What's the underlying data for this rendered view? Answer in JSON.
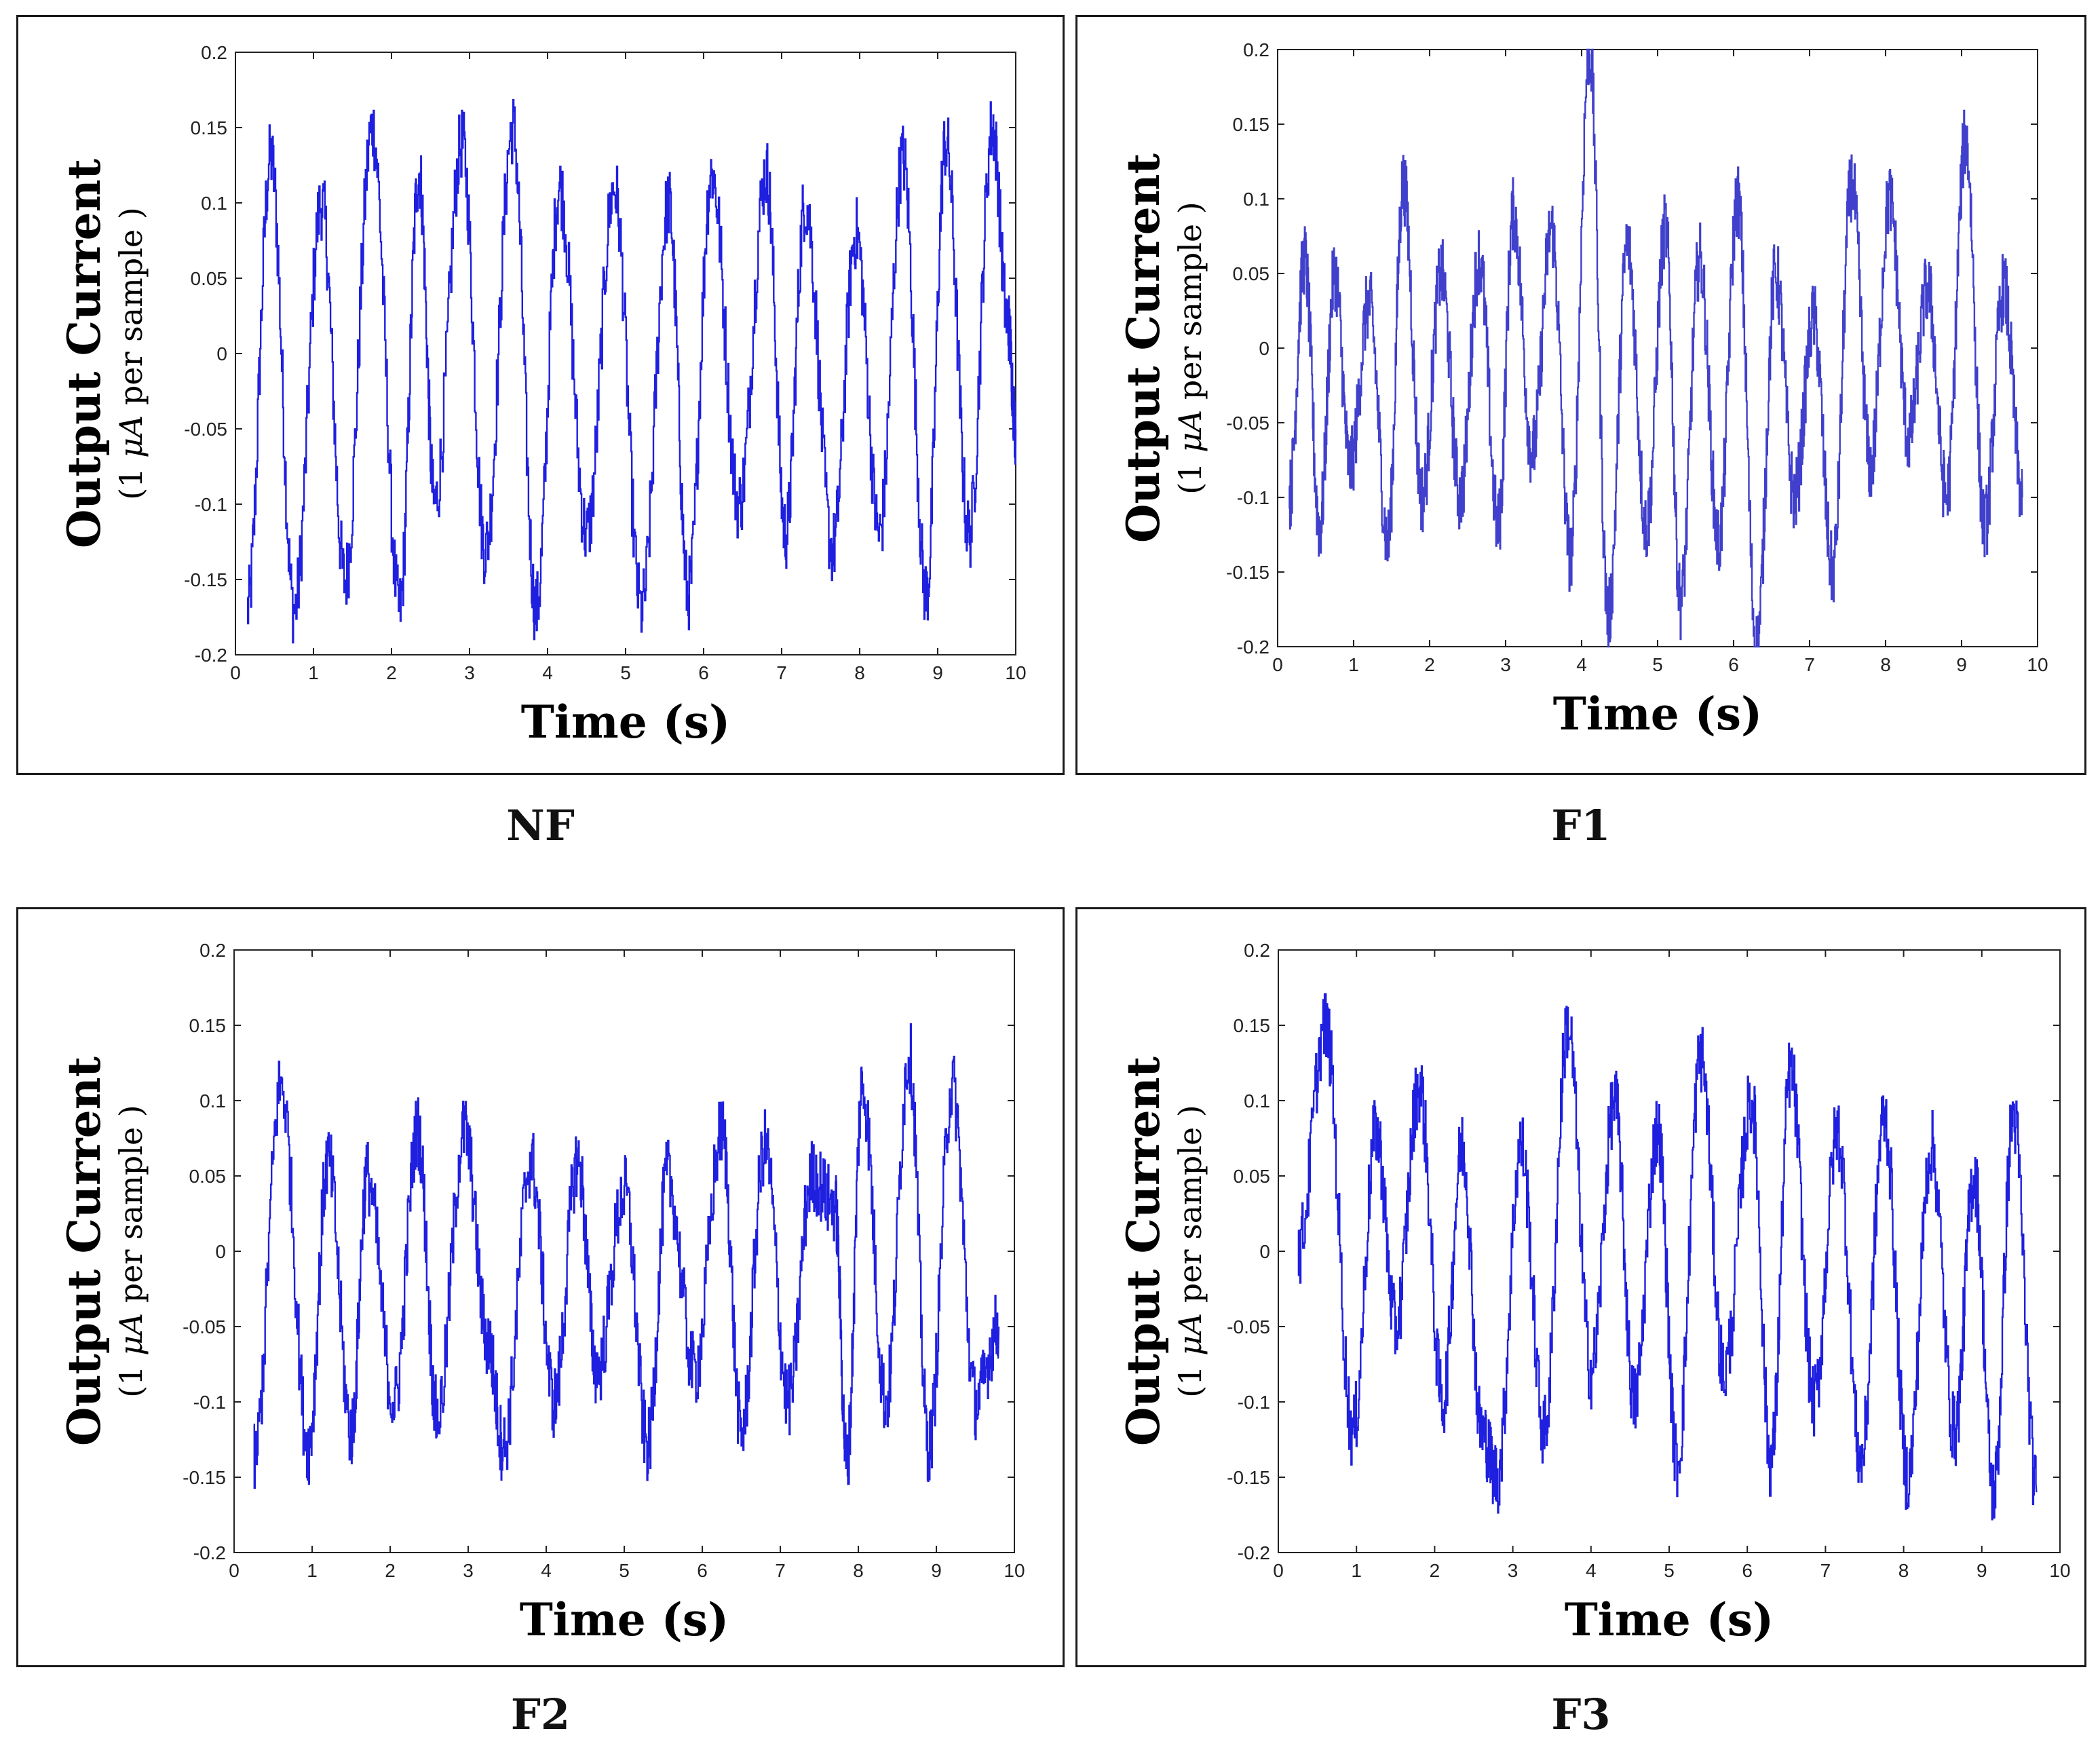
{
  "chart_data": [
    {
      "type": "line",
      "caption": "NF",
      "xlabel": "Time (s)",
      "ylabel": "Output Current",
      "ylabel_unit": [
        "(1 ",
        "μA",
        " per sample )"
      ],
      "xlim": [
        0,
        10
      ],
      "ylim": [
        -0.2,
        0.2
      ],
      "xticks": [
        0,
        1,
        2,
        3,
        4,
        5,
        6,
        7,
        8,
        9,
        10
      ],
      "xtick_labels": [
        "0",
        "1",
        "2",
        "3",
        "4",
        "5",
        "6",
        "7",
        "8",
        "9",
        "10"
      ],
      "yticks": [
        -0.2,
        -0.15,
        -0.1,
        -0.05,
        0,
        0.05,
        0.1,
        0.15,
        0.2
      ],
      "ytick_labels": [
        "-0.2",
        "-0.15",
        "-0.1",
        "-0.05",
        "0",
        "0.05",
        "0.1",
        "0.15",
        "0.2"
      ],
      "series": [
        {
          "name": "NF",
          "color": "#1f1fe0",
          "x": [
            0.15,
            0.45,
            0.75,
            1.1,
            1.4,
            1.75,
            2.1,
            2.35,
            2.55,
            2.9,
            3.2,
            3.55,
            3.85,
            4.15,
            4.5,
            4.85,
            5.2,
            5.55,
            5.8,
            6.1,
            6.45,
            6.8,
            7.05,
            7.3,
            7.65,
            7.95,
            8.25,
            8.55,
            8.85,
            9.1,
            9.4,
            9.7,
            9.9,
            10.0
          ],
          "values": [
            -0.17,
            0.13,
            -0.17,
            0.1,
            -0.15,
            0.15,
            -0.17,
            0.12,
            -0.1,
            0.14,
            -0.13,
            0.15,
            -0.17,
            0.11,
            -0.12,
            0.11,
            -0.17,
            0.1,
            -0.16,
            0.12,
            -0.1,
            0.12,
            -0.12,
            0.1,
            -0.13,
            0.08,
            -0.12,
            0.13,
            -0.16,
            0.14,
            -0.12,
            0.15,
            0.02,
            -0.05
          ]
        }
      ]
    },
    {
      "type": "line",
      "caption": "F1",
      "xlabel": "Time (s)",
      "ylabel": "Output Current",
      "ylabel_unit": [
        "(1 ",
        "μA",
        " per sample )"
      ],
      "xlim": [
        0,
        10
      ],
      "ylim": [
        -0.2,
        0.2
      ],
      "xticks": [
        0,
        1,
        2,
        3,
        4,
        5,
        6,
        7,
        8,
        9,
        10
      ],
      "xtick_labels": [
        "0",
        "1",
        "2",
        "3",
        "4",
        "5",
        "6",
        "7",
        "8",
        "9",
        "10"
      ],
      "yticks": [
        -0.2,
        -0.15,
        -0.1,
        -0.05,
        0,
        0.05,
        0.1,
        0.15,
        0.2
      ],
      "ytick_labels": [
        "-0.2",
        "-0.15",
        "-0.1",
        "-0.05",
        "0",
        "0.05",
        "0.1",
        "0.15",
        "0.2"
      ],
      "series": [
        {
          "name": "F1",
          "color": "#4040cc",
          "x": [
            0.15,
            0.35,
            0.55,
            0.75,
            0.95,
            1.2,
            1.45,
            1.65,
            1.9,
            2.15,
            2.4,
            2.65,
            2.9,
            3.1,
            3.35,
            3.6,
            3.85,
            4.1,
            4.35,
            4.6,
            4.85,
            5.1,
            5.3,
            5.55,
            5.8,
            6.05,
            6.3,
            6.55,
            6.8,
            7.05,
            7.3,
            7.55,
            7.8,
            8.05,
            8.3,
            8.55,
            8.8,
            9.05,
            9.3,
            9.55,
            9.8
          ],
          "values": [
            -0.1,
            0.06,
            -0.12,
            0.05,
            -0.08,
            0.03,
            -0.13,
            0.11,
            -0.1,
            0.05,
            -0.1,
            0.06,
            -0.12,
            0.09,
            -0.07,
            0.08,
            -0.14,
            0.2,
            -0.18,
            0.07,
            -0.12,
            0.08,
            -0.17,
            0.06,
            -0.13,
            0.1,
            -0.2,
            0.05,
            -0.1,
            0.02,
            -0.15,
            0.11,
            -0.08,
            0.1,
            -0.06,
            0.04,
            -0.1,
            0.14,
            -0.12,
            0.04,
            -0.1
          ]
        }
      ]
    },
    {
      "type": "line",
      "caption": "F2",
      "xlabel": "Time (s)",
      "ylabel": "Output Current",
      "ylabel_unit": [
        "(1 ",
        "μA",
        " per sample )"
      ],
      "xlim": [
        0,
        10
      ],
      "ylim": [
        -0.2,
        0.2
      ],
      "xticks": [
        0,
        1,
        2,
        3,
        4,
        5,
        6,
        7,
        8,
        9,
        10
      ],
      "xtick_labels": [
        "0",
        "1",
        "2",
        "3",
        "4",
        "5",
        "6",
        "7",
        "8",
        "9",
        "10"
      ],
      "yticks": [
        -0.2,
        -0.15,
        -0.1,
        -0.05,
        0,
        0.05,
        0.1,
        0.15,
        0.2
      ],
      "ytick_labels": [
        "-0.2",
        "-0.15",
        "-0.1",
        "-0.05",
        "0",
        "0.05",
        "0.1",
        "0.15",
        "0.2"
      ],
      "series": [
        {
          "name": "F2",
          "color": "#1f1fe0",
          "x": [
            0.25,
            0.6,
            0.95,
            1.2,
            1.5,
            1.7,
            2.05,
            2.35,
            2.6,
            2.95,
            3.25,
            3.45,
            3.8,
            4.1,
            4.4,
            4.65,
            5.0,
            5.3,
            5.55,
            5.9,
            6.25,
            6.5,
            6.8,
            7.1,
            7.4,
            7.7,
            7.85,
            8.05,
            8.35,
            8.65,
            8.9,
            9.2,
            9.5,
            9.8
          ],
          "values": [
            -0.14,
            0.11,
            -0.13,
            0.06,
            -0.12,
            0.05,
            -0.1,
            0.08,
            -0.11,
            0.08,
            -0.06,
            -0.13,
            0.06,
            -0.1,
            0.06,
            -0.08,
            0.04,
            -0.13,
            0.05,
            -0.08,
            0.08,
            -0.12,
            0.07,
            -0.1,
            0.05,
            0.03,
            -0.14,
            0.11,
            -0.1,
            0.13,
            -0.13,
            0.11,
            -0.1,
            -0.05
          ]
        }
      ]
    },
    {
      "type": "line",
      "caption": "F3",
      "xlabel": "Time (s)",
      "ylabel": "Output Current",
      "ylabel_unit": [
        "(1 ",
        "μA",
        " per sample )"
      ],
      "xlim": [
        0,
        10
      ],
      "ylim": [
        -0.2,
        0.2
      ],
      "xticks": [
        0,
        1,
        2,
        3,
        4,
        5,
        6,
        7,
        8,
        9,
        10
      ],
      "xtick_labels": [
        "0",
        "1",
        "2",
        "3",
        "4",
        "5",
        "6",
        "7",
        "8",
        "9",
        "10"
      ],
      "yticks": [
        -0.2,
        -0.15,
        -0.1,
        -0.05,
        0,
        0.05,
        0.1,
        0.15,
        0.2
      ],
      "ytick_labels": [
        "-0.2",
        "-0.15",
        "-0.1",
        "-0.05",
        "0",
        "0.05",
        "0.1",
        "0.15",
        "0.2"
      ],
      "series": [
        {
          "name": "F3",
          "color": "#1f1fe0",
          "x": [
            0.25,
            0.6,
            0.95,
            1.25,
            1.5,
            1.8,
            2.1,
            2.35,
            2.6,
            2.8,
            3.1,
            3.4,
            3.7,
            4.0,
            4.3,
            4.55,
            4.85,
            5.1,
            5.4,
            5.7,
            6.05,
            6.3,
            6.55,
            6.85,
            7.15,
            7.45,
            7.75,
            8.05,
            8.35,
            8.65,
            8.9,
            9.15,
            9.4,
            9.7
          ],
          "values": [
            0.0,
            0.15,
            -0.12,
            0.08,
            -0.05,
            0.11,
            -0.1,
            0.07,
            -0.12,
            -0.15,
            0.07,
            -0.12,
            0.15,
            -0.08,
            0.1,
            -0.1,
            0.08,
            -0.14,
            0.13,
            -0.08,
            0.1,
            -0.14,
            0.12,
            -0.1,
            0.08,
            -0.14,
            0.09,
            -0.15,
            0.07,
            -0.12,
            0.05,
            -0.16,
            0.09,
            -0.16
          ]
        }
      ]
    }
  ]
}
